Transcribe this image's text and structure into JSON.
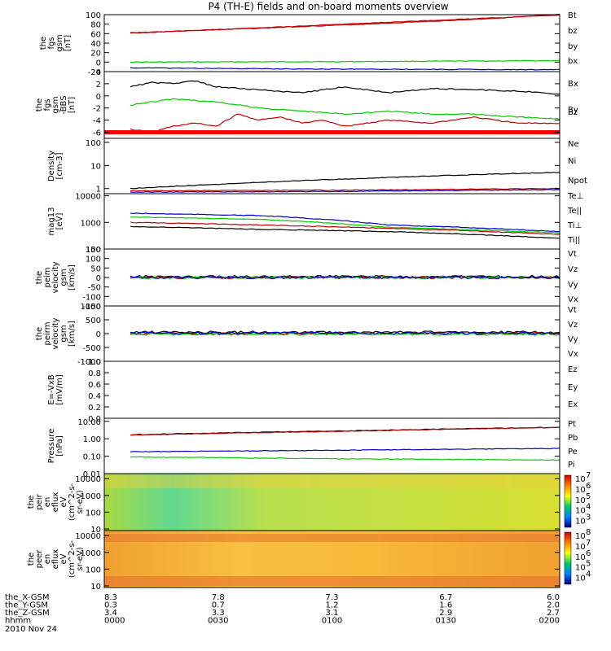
{
  "title": "P4 (TH-E) fields and on-board moments overview",
  "date_label": "2010 Nov 24",
  "colors": {
    "black": "#000000",
    "red": "#c00000",
    "green": "#00cc00",
    "blue": "#0000cc",
    "rbar": "#ff0000"
  },
  "chart_data": [
    {
      "type": "line",
      "ylabel": [
        "the",
        "fgs",
        "gsm",
        "[nT]"
      ],
      "ylim": [
        -20,
        100
      ],
      "log": false,
      "yticks": [
        {
          "v": 100,
          "l": "100"
        },
        {
          "v": 80,
          "l": "80"
        },
        {
          "v": 60,
          "l": "60"
        },
        {
          "v": 40,
          "l": "40"
        },
        {
          "v": 20,
          "l": "20"
        },
        {
          "v": 0,
          "l": "0"
        },
        {
          "v": -20,
          "l": "-20"
        }
      ],
      "series": [
        {
          "name": "Bt",
          "color": "red",
          "x": [
            0,
            0.2,
            0.4,
            0.6,
            0.8,
            1.0
          ],
          "y": [
            62,
            68,
            75,
            82,
            90,
            100
          ]
        },
        {
          "name": "bz",
          "color": "red",
          "x": [
            0,
            1.0
          ],
          "y": [
            61,
            99
          ]
        },
        {
          "name": "by",
          "color": "green",
          "x": [
            0,
            0.5,
            1.0
          ],
          "y": [
            0,
            1,
            3
          ]
        },
        {
          "name": "bx",
          "color": "blue",
          "x": [
            0,
            0.3,
            0.6,
            1.0
          ],
          "y": [
            -12,
            -14,
            -15,
            -16
          ]
        }
      ]
    },
    {
      "type": "line",
      "ylabel": [
        "the",
        "fgs",
        "gsm",
        "-BBS",
        "[nT]"
      ],
      "ylim": [
        -7,
        4
      ],
      "log": false,
      "red_bar": true,
      "yticks": [
        {
          "v": 4,
          "l": "4"
        },
        {
          "v": 2,
          "l": "2"
        },
        {
          "v": 0,
          "l": "0"
        },
        {
          "v": -2,
          "l": "-2"
        },
        {
          "v": -4,
          "l": "-4"
        },
        {
          "v": -6,
          "l": "-6"
        }
      ],
      "series": [
        {
          "name": "Bx",
          "color": "black",
          "x": [
            0,
            0.05,
            0.1,
            0.15,
            0.2,
            0.3,
            0.4,
            0.5,
            0.6,
            0.7,
            0.8,
            0.9,
            1.0
          ],
          "y": [
            1.5,
            2.2,
            2.0,
            2.5,
            1.5,
            1.0,
            0.5,
            1.5,
            0.5,
            1.2,
            1.0,
            0.8,
            0.3
          ]
        },
        {
          "name": "By",
          "color": "green",
          "x": [
            0,
            0.1,
            0.2,
            0.3,
            0.4,
            0.5,
            0.6,
            0.7,
            0.8,
            0.9,
            1.0
          ],
          "y": [
            -1.5,
            -0.5,
            -1.0,
            -2.0,
            -2.5,
            -3.0,
            -2.5,
            -3.0,
            -3.0,
            -3.5,
            -3.8
          ]
        },
        {
          "name": "Bz",
          "color": "red",
          "x": [
            0,
            0.05,
            0.1,
            0.15,
            0.2,
            0.25,
            0.3,
            0.35,
            0.4,
            0.45,
            0.5,
            0.6,
            0.7,
            0.8,
            0.9,
            1.0
          ],
          "y": [
            -5.5,
            -6.0,
            -5.0,
            -4.5,
            -5.0,
            -3.0,
            -4.0,
            -3.5,
            -4.5,
            -4.0,
            -5.0,
            -4.0,
            -4.5,
            -3.5,
            -4.5,
            -4.5
          ]
        }
      ]
    },
    {
      "type": "line",
      "ylabel": [
        "Density",
        "[cm-3]"
      ],
      "ylim": [
        0.6,
        150
      ],
      "log": true,
      "yticks": [
        {
          "v": 100,
          "l": "100"
        },
        {
          "v": 10,
          "l": "10"
        },
        {
          "v": 1,
          "l": "1"
        }
      ],
      "series": [
        {
          "name": "Ne",
          "color": "red",
          "x": [
            0,
            0.5,
            1.0
          ],
          "y": [
            0.8,
            0.85,
            1.0
          ]
        },
        {
          "name": "Ni",
          "color": "black",
          "x": [
            0,
            0.2,
            0.4,
            0.6,
            0.8,
            1.0
          ],
          "y": [
            1.0,
            1.5,
            2.2,
            3.0,
            4.0,
            5.0
          ]
        },
        {
          "name": "Npot",
          "color": "blue",
          "x": [
            0,
            0.5,
            1.0
          ],
          "y": [
            0.7,
            0.75,
            0.9
          ]
        }
      ]
    },
    {
      "type": "line",
      "ylabel": [
        "mag13",
        "[eV]"
      ],
      "ylim": [
        100,
        12000
      ],
      "log": true,
      "yticks": [
        {
          "v": 10000,
          "l": "10000"
        },
        {
          "v": 1000,
          "l": "1000"
        },
        {
          "v": 100,
          "l": "100"
        }
      ],
      "series": [
        {
          "name": "Te⊥",
          "color": "red",
          "x": [
            0,
            0.3,
            0.6,
            1.0
          ],
          "y": [
            1000,
            800,
            600,
            350
          ]
        },
        {
          "name": "Te||",
          "color": "black",
          "x": [
            0,
            0.3,
            0.6,
            1.0
          ],
          "y": [
            700,
            550,
            450,
            250
          ]
        },
        {
          "name": "Ti⊥",
          "color": "blue",
          "x": [
            0,
            0.3,
            0.6,
            1.0
          ],
          "y": [
            2200,
            1800,
            800,
            450
          ]
        },
        {
          "name": "Ti||",
          "color": "green",
          "x": [
            0,
            0.3,
            0.6,
            1.0
          ],
          "y": [
            1600,
            1300,
            650,
            400
          ]
        }
      ]
    },
    {
      "type": "line",
      "ylabel": [
        "the",
        "peim",
        "velocity",
        "gsm",
        "[km/s]"
      ],
      "ylim": [
        -150,
        150
      ],
      "log": false,
      "yticks": [
        {
          "v": 150,
          "l": "150"
        },
        {
          "v": 100,
          "l": "100"
        },
        {
          "v": 50,
          "l": "50"
        },
        {
          "v": 0,
          "l": "0"
        },
        {
          "v": -50,
          "l": "-50"
        },
        {
          "v": -100,
          "l": "-100"
        },
        {
          "v": -150,
          "l": "-150"
        }
      ],
      "series": [
        {
          "name": "Vt",
          "color": "black",
          "x": [
            0,
            1.0
          ],
          "y": [
            5,
            5
          ]
        },
        {
          "name": "Vz",
          "color": "red",
          "x": [
            0,
            1.0
          ],
          "y": [
            0,
            0
          ]
        },
        {
          "name": "Vy",
          "color": "green",
          "x": [
            0,
            1.0
          ],
          "y": [
            0,
            0
          ]
        },
        {
          "name": "Vx",
          "color": "blue",
          "x": [
            0,
            1.0
          ],
          "y": [
            0,
            0
          ]
        }
      ]
    },
    {
      "type": "line",
      "ylabel": [
        "the",
        "peirm",
        "velocity",
        "gsm",
        "[km/s]"
      ],
      "ylim": [
        -1000,
        1000
      ],
      "log": false,
      "yticks": [
        {
          "v": 1000,
          "l": "1000"
        },
        {
          "v": 500,
          "l": "500"
        },
        {
          "v": 0,
          "l": "0"
        },
        {
          "v": -500,
          "l": "-500"
        },
        {
          "v": -1000,
          "l": "-1000"
        }
      ],
      "series": [
        {
          "name": "Vt",
          "color": "black",
          "x": [
            0,
            1.0
          ],
          "y": [
            50,
            50
          ]
        },
        {
          "name": "Vz",
          "color": "red",
          "x": [
            0,
            1.0
          ],
          "y": [
            0,
            0
          ]
        },
        {
          "name": "Vy",
          "color": "green",
          "x": [
            0,
            1.0
          ],
          "y": [
            -20,
            -20
          ]
        },
        {
          "name": "Vx",
          "color": "blue",
          "x": [
            0,
            1.0
          ],
          "y": [
            20,
            20
          ]
        }
      ]
    },
    {
      "type": "line",
      "ylabel": [
        "E=-VxB",
        "[mV/m]"
      ],
      "ylim": [
        0,
        1.0
      ],
      "log": false,
      "yticks": [
        {
          "v": 1.0,
          "l": "1.0"
        },
        {
          "v": 0.8,
          "l": "0.8"
        },
        {
          "v": 0.6,
          "l": "0.6"
        },
        {
          "v": 0.4,
          "l": "0.4"
        },
        {
          "v": 0.2,
          "l": "0.2"
        },
        {
          "v": 0,
          "l": "0.0"
        }
      ],
      "series": [
        {
          "name": "Ez",
          "color": "red",
          "x": [],
          "y": []
        },
        {
          "name": "Ey",
          "color": "green",
          "x": [],
          "y": []
        },
        {
          "name": "Ex",
          "color": "blue",
          "x": [],
          "y": []
        }
      ]
    },
    {
      "type": "line",
      "ylabel": [
        "Pressure",
        "[nPa]"
      ],
      "ylim": [
        0.01,
        15
      ],
      "log": true,
      "yticks": [
        {
          "v": 10,
          "l": "10.00"
        },
        {
          "v": 1,
          "l": "1.00"
        },
        {
          "v": 0.1,
          "l": "0.10"
        },
        {
          "v": 0.01,
          "l": "0.01"
        }
      ],
      "series": [
        {
          "name": "Pt",
          "color": "black",
          "x": [
            0,
            0.5,
            1.0
          ],
          "y": [
            1.7,
            2.8,
            4.5
          ]
        },
        {
          "name": "Pb",
          "color": "red",
          "x": [
            0,
            0.5,
            1.0
          ],
          "y": [
            1.6,
            2.7,
            4.4
          ]
        },
        {
          "name": "Pe",
          "color": "green",
          "x": [
            0,
            0.5,
            1.0
          ],
          "y": [
            0.09,
            0.07,
            0.06
          ]
        },
        {
          "name": "Pi",
          "color": "blue",
          "x": [
            0,
            0.5,
            1.0
          ],
          "y": [
            0.18,
            0.22,
            0.28
          ]
        }
      ]
    },
    {
      "type": "heatmap",
      "ylabel": [
        "the",
        "peir",
        "en",
        "eflux",
        "eV",
        "(cm^2-s-",
        "sr-eV)"
      ],
      "ylim": [
        8,
        20000
      ],
      "log": true,
      "yticks": [
        {
          "v": 10000,
          "l": "10000"
        },
        {
          "v": 1000,
          "l": "1000"
        },
        {
          "v": 100,
          "l": "100"
        },
        {
          "v": 10,
          "l": "10"
        }
      ],
      "colorbar": {
        "ticks": [
          "10",
          "10",
          "10",
          "10",
          "10"
        ],
        "exps": [
          "7",
          "6",
          "5",
          "4",
          "3"
        ]
      }
    },
    {
      "type": "heatmap",
      "ylabel": [
        "the",
        "peer",
        "en",
        "eflux",
        "eV",
        "(cm^2-s-",
        "sr-eV)"
      ],
      "ylim": [
        8,
        20000
      ],
      "log": true,
      "yticks": [
        {
          "v": 10000,
          "l": "10000"
        },
        {
          "v": 1000,
          "l": "1000"
        },
        {
          "v": 100,
          "l": "100"
        },
        {
          "v": 10,
          "l": "10"
        }
      ],
      "colorbar": {
        "ticks": [
          "10",
          "10",
          "10",
          "10",
          "10"
        ],
        "exps": [
          "8",
          "7",
          "6",
          "5",
          "4"
        ]
      }
    }
  ],
  "xaxis": {
    "rows": [
      {
        "label": "the_X-GSM",
        "values": [
          "8.3",
          "7.8",
          "7.3",
          "6.7",
          "6.0"
        ]
      },
      {
        "label": "the_Y-GSM",
        "values": [
          "0.3",
          "0.7",
          "1.2",
          "1.6",
          "2.0"
        ]
      },
      {
        "label": "the_Z-GSM",
        "values": [
          "3.4",
          "3.3",
          "3.1",
          "2.9",
          "2.7"
        ]
      },
      {
        "label": "hhmm",
        "values": [
          "0000",
          "0030",
          "0100",
          "0130",
          "0200"
        ]
      }
    ]
  }
}
